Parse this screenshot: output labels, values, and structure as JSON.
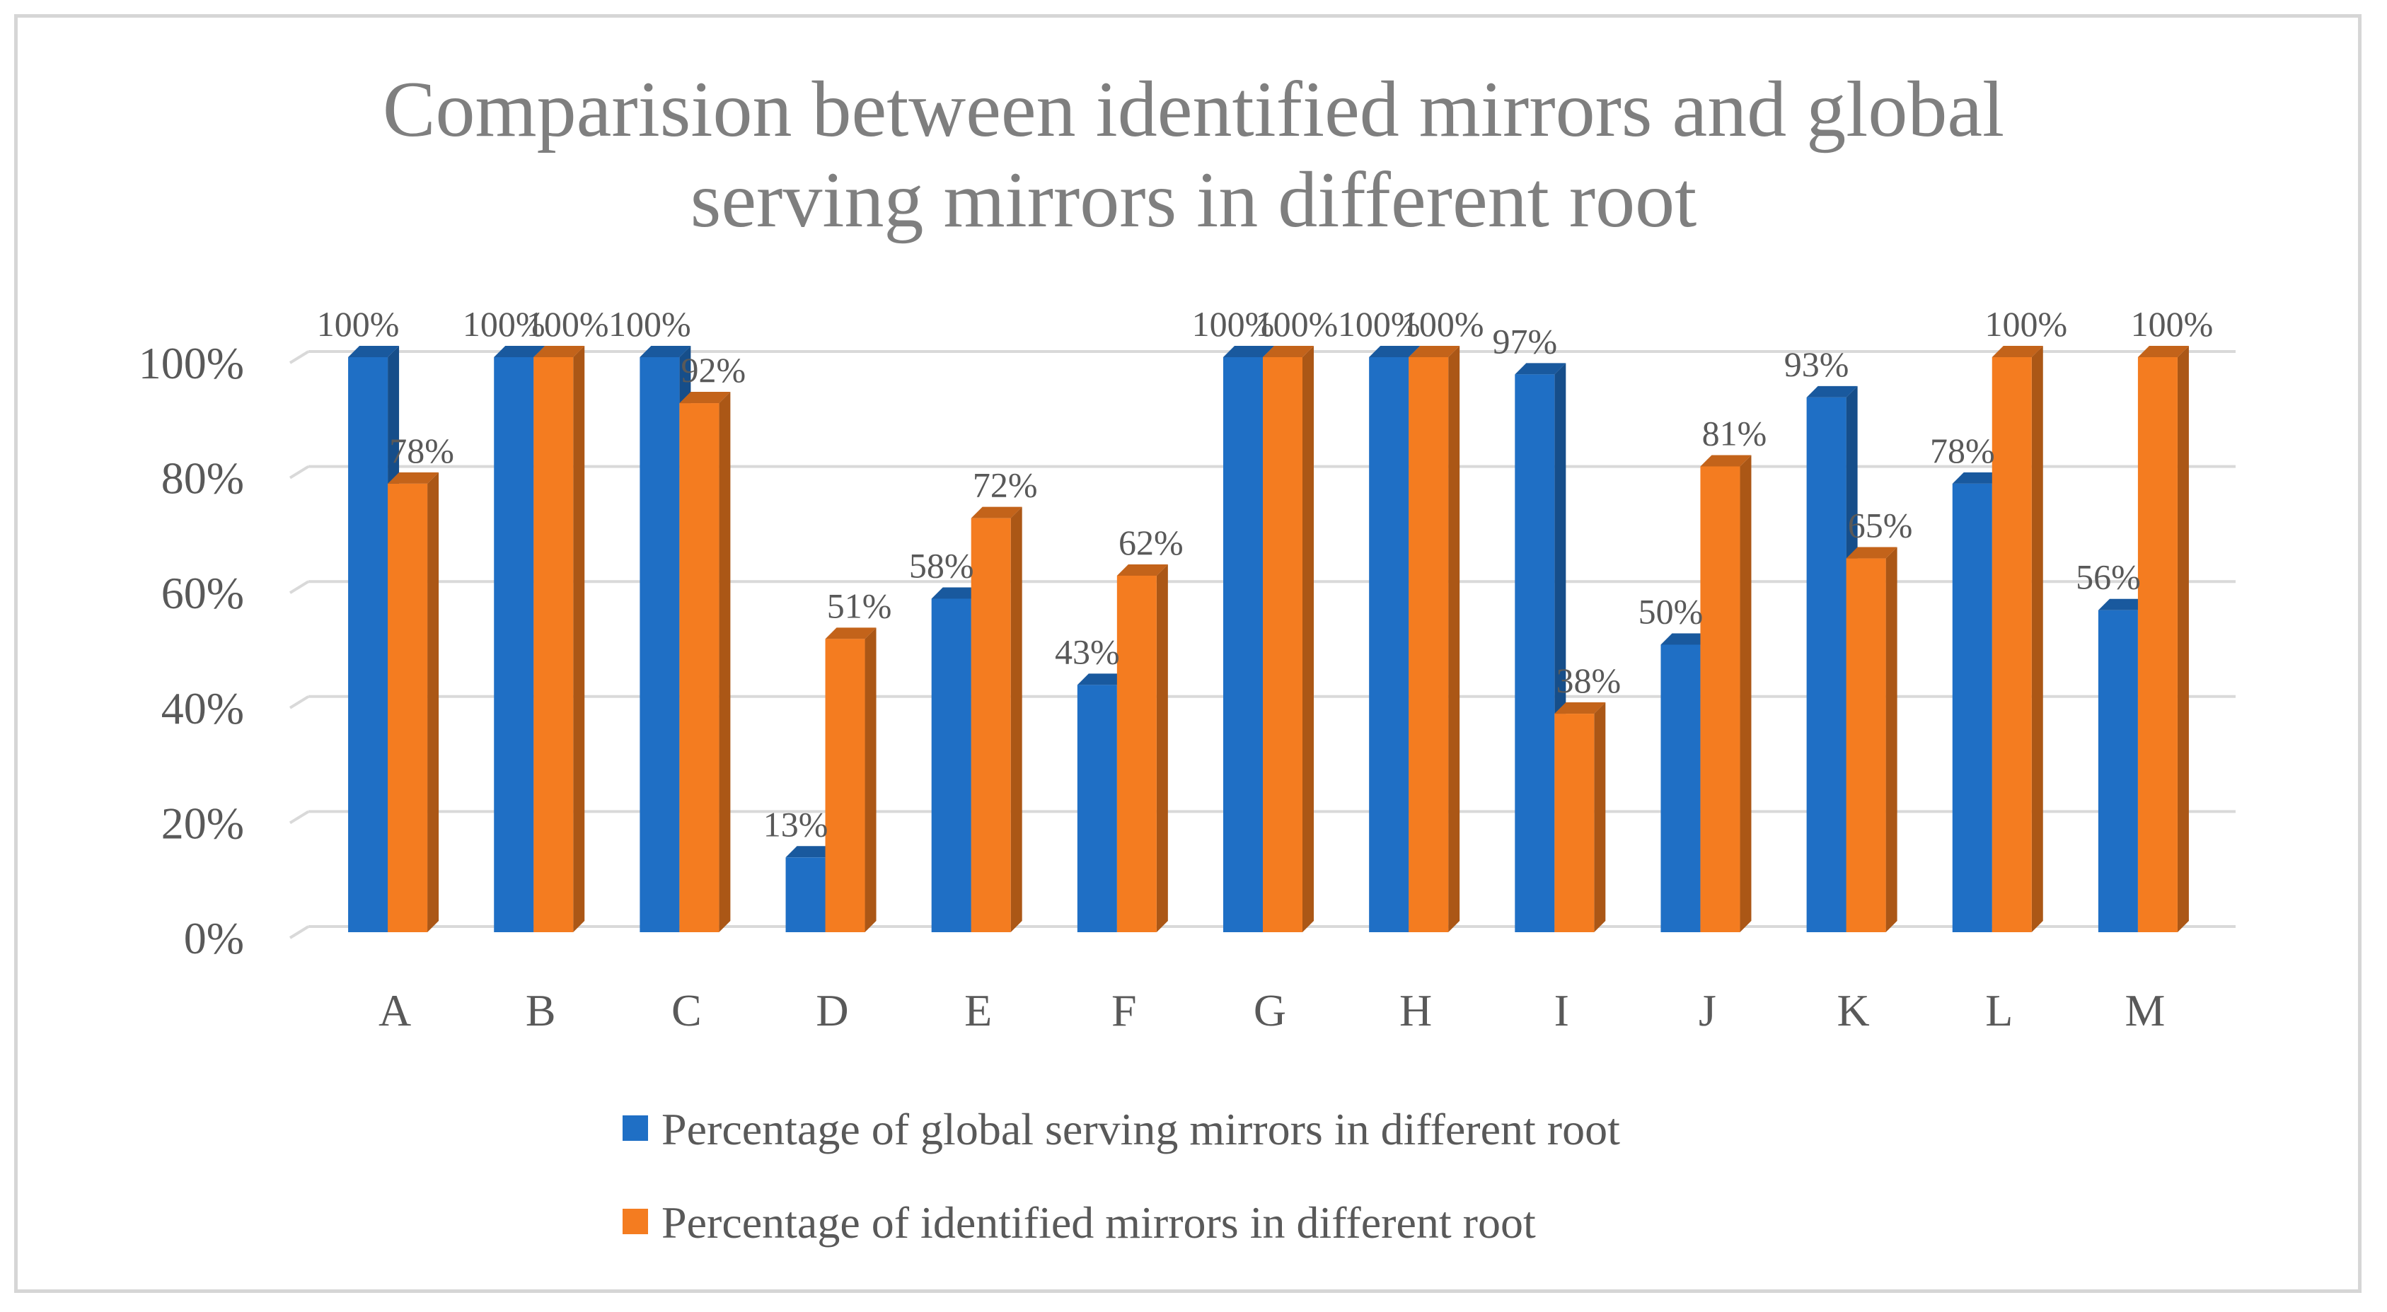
{
  "chart_data": {
    "type": "bar",
    "title_lines": [
      "Comparision between identified mirrors and global",
      "serving mirrors in different root"
    ],
    "categories": [
      "A",
      "B",
      "C",
      "D",
      "E",
      "F",
      "G",
      "H",
      "I",
      "J",
      "K",
      "L",
      "M"
    ],
    "series": [
      {
        "name": "Percentage of global serving mirrors in different root",
        "color": "#1f6fc5",
        "values": [
          100,
          100,
          100,
          13,
          58,
          43,
          100,
          100,
          97,
          50,
          93,
          78,
          56
        ]
      },
      {
        "name": "Percentage of identified mirrors in different root",
        "color": "#f47c20",
        "values": [
          78,
          100,
          92,
          51,
          72,
          62,
          100,
          100,
          38,
          81,
          65,
          100,
          100
        ]
      }
    ],
    "ylim": [
      0,
      100
    ],
    "yticks": [
      0,
      20,
      40,
      60,
      80,
      100
    ],
    "tick_suffix": "%",
    "grid": true,
    "legend": "bottom",
    "xlabel": "",
    "ylabel": ""
  }
}
